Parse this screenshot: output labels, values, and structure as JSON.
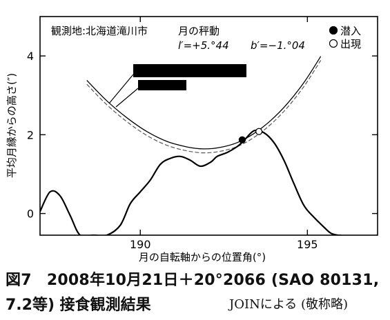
{
  "chart_data": {
    "type": "line",
    "xlabel": "月の自転軸からの位置角(°)",
    "ylabel": "平均月縁からの高さ(″)",
    "xlim": [
      187.0,
      197.1
    ],
    "ylim": [
      -0.55,
      5.0
    ],
    "x_ticks": [
      190,
      195
    ],
    "y_ticks": [
      0,
      2,
      4
    ],
    "annotations": {
      "location": "観測地:北海道滝川市",
      "libration_title": "月の秤動",
      "libration_l": "l′=+5.°44",
      "libration_b": "b′=−1.°04"
    },
    "legend": {
      "placement": "top-right",
      "disappear": "潜入",
      "reappear": "出現"
    },
    "series": [
      {
        "role": "limb-profile",
        "x": [
          187.0,
          187.3,
          187.6,
          187.9,
          188.2,
          188.6,
          189.0,
          189.4,
          189.7,
          190.0,
          190.3,
          190.6,
          190.9,
          191.2,
          191.5,
          191.8,
          192.1,
          192.3,
          192.6,
          192.9,
          193.1,
          193.4,
          193.7,
          194.0,
          194.3,
          194.6,
          194.9,
          195.2,
          195.5,
          195.7,
          195.9,
          196.0
        ],
        "y": [
          0.05,
          0.55,
          0.45,
          -0.05,
          -0.55,
          -0.55,
          -0.55,
          -0.3,
          0.25,
          0.55,
          0.85,
          1.25,
          1.4,
          1.45,
          1.35,
          1.2,
          1.3,
          1.45,
          1.55,
          1.7,
          1.85,
          2.1,
          2.05,
          1.8,
          1.35,
          0.75,
          0.2,
          -0.1,
          -0.35,
          -0.5,
          -0.55,
          -0.55
        ]
      },
      {
        "role": "predicted-path",
        "x": [
          188.4,
          189.0,
          189.6,
          190.2,
          190.8,
          191.4,
          191.9,
          192.4,
          192.9,
          193.4,
          193.9,
          194.4,
          194.9,
          195.4
        ],
        "y": [
          3.38,
          2.86,
          2.43,
          2.08,
          1.83,
          1.69,
          1.64,
          1.68,
          1.8,
          2.03,
          2.36,
          2.79,
          3.33,
          3.99
        ]
      },
      {
        "role": "predicted-path-offset",
        "x": [
          188.4,
          189.0,
          189.6,
          190.2,
          190.8,
          191.4,
          191.9,
          192.4,
          192.9,
          193.4,
          193.9,
          194.4,
          194.9,
          195.4
        ],
        "y": [
          3.28,
          2.76,
          2.33,
          1.98,
          1.73,
          1.59,
          1.54,
          1.58,
          1.7,
          1.93,
          2.26,
          2.69,
          3.23,
          3.89
        ]
      }
    ],
    "events": [
      {
        "type": "disappear",
        "x": 193.05,
        "y": 1.87
      },
      {
        "type": "reappear",
        "x": 193.55,
        "y": 2.08
      }
    ]
  },
  "caption": {
    "line1": "図7　2008年10月21日＋20°2066 (SAO 80131,",
    "line2": "7.2等) 接食観測結果",
    "credit": "JOINによる (敬称略)"
  }
}
